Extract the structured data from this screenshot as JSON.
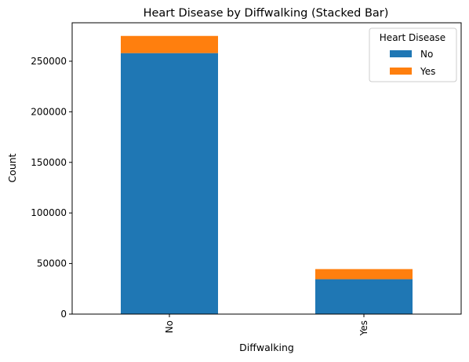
{
  "chart_data": {
    "type": "bar",
    "stacked": true,
    "title": "Heart Disease by Diffwalking (Stacked Bar)",
    "xlabel": "Diffwalking",
    "ylabel": "Count",
    "categories": [
      "No",
      "Yes"
    ],
    "series": [
      {
        "name": "No",
        "color": "#1f77b4",
        "values": [
          258000,
          34500
        ]
      },
      {
        "name": "Yes",
        "color": "#ff7f0e",
        "values": [
          17000,
          10000
        ]
      }
    ],
    "ylim": [
      0,
      288000
    ],
    "yticks": [
      0,
      50000,
      100000,
      150000,
      200000,
      250000
    ],
    "legend": {
      "title": "Heart Disease",
      "placement": "top-right"
    },
    "grid": false
  }
}
